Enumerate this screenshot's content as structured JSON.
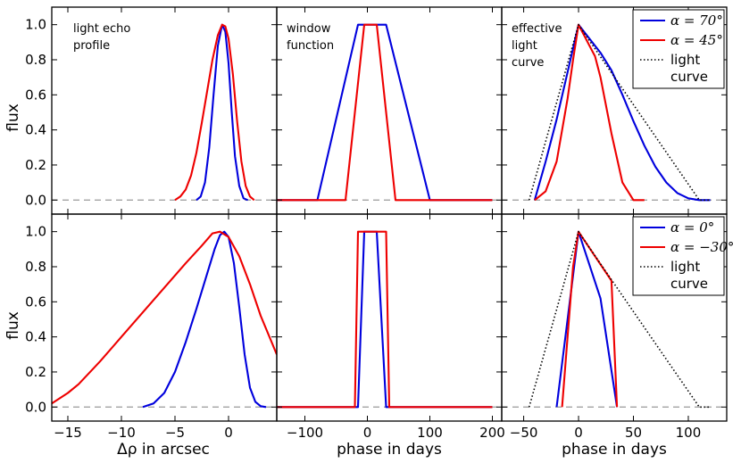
{
  "chart_data": {
    "type": "line",
    "ylabel": "flux",
    "ylim": [
      -0.08,
      1.1
    ],
    "yticks": [
      0.0,
      0.2,
      0.4,
      0.6,
      0.8,
      1.0
    ],
    "ytick_labels": [
      "0.0",
      "0.2",
      "0.4",
      "0.6",
      "0.8",
      "1.0"
    ],
    "columns": [
      {
        "xlabel": "Δρ in arcsec",
        "xlim": [
          -16.5,
          4.5
        ],
        "xticks": [
          -15,
          -10,
          -5,
          0
        ],
        "xtick_labels": [
          "−15",
          "−10",
          "−5",
          "0"
        ]
      },
      {
        "xlabel": "phase in days",
        "xlim": [
          -145,
          215
        ],
        "xticks": [
          -100,
          0,
          100,
          200
        ],
        "xtick_labels": [
          "−100",
          "0",
          "100",
          "200"
        ]
      },
      {
        "xlabel": "phase in days",
        "xlim": [
          -70,
          135
        ],
        "xticks": [
          -50,
          0,
          50,
          100
        ],
        "xtick_labels": [
          "−50",
          "0",
          "50",
          "100"
        ]
      }
    ],
    "panels": [
      {
        "row": 0,
        "col": 0,
        "annotation": [
          "light echo",
          "profile"
        ],
        "series": [
          {
            "name": "α=70°",
            "color": "#0000dd",
            "style": "solid",
            "x": [
              -3.0,
              -2.6,
              -2.2,
              -1.8,
              -1.4,
              -1.0,
              -0.6,
              -0.3,
              0.0,
              0.3,
              0.6,
              1.0,
              1.4,
              1.8
            ],
            "y": [
              0.0,
              0.02,
              0.1,
              0.3,
              0.6,
              0.88,
              1.0,
              0.96,
              0.78,
              0.5,
              0.25,
              0.08,
              0.01,
              0.0
            ]
          },
          {
            "name": "α=45°",
            "color": "#ee0000",
            "style": "solid",
            "x": [
              -5.0,
              -4.5,
              -4.0,
              -3.5,
              -3.0,
              -2.5,
              -2.0,
              -1.5,
              -1.0,
              -0.6,
              -0.3,
              0.0,
              0.4,
              0.8,
              1.2,
              1.6,
              2.0,
              2.4
            ],
            "y": [
              0.0,
              0.02,
              0.06,
              0.14,
              0.27,
              0.44,
              0.62,
              0.8,
              0.94,
              1.0,
              0.99,
              0.92,
              0.72,
              0.45,
              0.22,
              0.08,
              0.02,
              0.0
            ]
          }
        ]
      },
      {
        "row": 0,
        "col": 1,
        "annotation": [
          "window",
          "function"
        ],
        "series": [
          {
            "name": "α=70°",
            "color": "#0000dd",
            "style": "solid",
            "x": [
              -145,
              -80,
              -15,
              30,
              100,
              200
            ],
            "y": [
              0,
              0,
              1,
              1,
              0,
              0
            ]
          },
          {
            "name": "α=45°",
            "color": "#ee0000",
            "style": "solid",
            "x": [
              -145,
              -35,
              -5,
              15,
              45,
              200
            ],
            "y": [
              0,
              0,
              1,
              1,
              0,
              0
            ]
          }
        ]
      },
      {
        "row": 0,
        "col": 2,
        "annotation": [
          "effective",
          "light",
          "curve"
        ],
        "legend": {
          "position": "top-right",
          "entries": [
            "α = 70°",
            "α = 45°",
            "light",
            "curve"
          ]
        },
        "series": [
          {
            "name": "α=70°",
            "color": "#0000dd",
            "style": "solid",
            "x": [
              -40,
              -30,
              -20,
              -10,
              0,
              10,
              20,
              30,
              40,
              50,
              60,
              70,
              80,
              90,
              100,
              110,
              120
            ],
            "y": [
              0.0,
              0.22,
              0.46,
              0.73,
              1.0,
              0.92,
              0.84,
              0.74,
              0.6,
              0.45,
              0.31,
              0.19,
              0.1,
              0.04,
              0.01,
              0.0,
              0.0
            ]
          },
          {
            "name": "α=45°",
            "color": "#ee0000",
            "style": "solid",
            "x": [
              -40,
              -30,
              -20,
              -10,
              -5,
              0,
              5,
              10,
              15,
              20,
              30,
              40,
              50,
              60
            ],
            "y": [
              0.0,
              0.05,
              0.22,
              0.58,
              0.8,
              1.0,
              0.94,
              0.88,
              0.82,
              0.7,
              0.38,
              0.1,
              0.0,
              0.0
            ]
          },
          {
            "name": "light curve",
            "color": "#000000",
            "style": "dotted",
            "x": [
              -45,
              0,
              35,
              110,
              120
            ],
            "y": [
              0.0,
              1.0,
              0.68,
              0.0,
              0.0
            ]
          }
        ]
      },
      {
        "row": 1,
        "col": 0,
        "series": [
          {
            "name": "α=0°",
            "color": "#0000dd",
            "style": "solid",
            "x": [
              -8.0,
              -7.0,
              -6.0,
              -5.0,
              -4.0,
              -3.0,
              -2.0,
              -1.3,
              -0.8,
              -0.4,
              0.0,
              0.5,
              1.0,
              1.5,
              2.0,
              2.5,
              3.0,
              3.5
            ],
            "y": [
              0.0,
              0.02,
              0.08,
              0.2,
              0.37,
              0.56,
              0.76,
              0.9,
              0.98,
              1.0,
              0.97,
              0.82,
              0.57,
              0.3,
              0.11,
              0.03,
              0.005,
              0.0
            ]
          },
          {
            "name": "α=−30°",
            "color": "#ee0000",
            "style": "solid",
            "x": [
              -16.5,
              -15.0,
              -14.0,
              -12.0,
              -10.0,
              -8.0,
              -6.0,
              -4.0,
              -2.5,
              -1.5,
              -0.8,
              0.0,
              1.0,
              2.0,
              3.0,
              4.5
            ],
            "y": [
              0.02,
              0.08,
              0.13,
              0.26,
              0.4,
              0.54,
              0.68,
              0.82,
              0.92,
              0.99,
              1.0,
              0.97,
              0.86,
              0.7,
              0.52,
              0.3
            ]
          }
        ]
      },
      {
        "row": 1,
        "col": 1,
        "series": [
          {
            "name": "α=0°",
            "color": "#0000dd",
            "style": "solid",
            "x": [
              -145,
              -15,
              -5,
              15,
              30,
              200
            ],
            "y": [
              0,
              0,
              1,
              1,
              0,
              0
            ]
          },
          {
            "name": "α=−30°",
            "color": "#ee0000",
            "style": "solid",
            "x": [
              -145,
              -20,
              -15,
              30,
              35,
              200
            ],
            "y": [
              0,
              0,
              1,
              1,
              0,
              0
            ]
          }
        ]
      },
      {
        "row": 1,
        "col": 2,
        "legend": {
          "position": "top-right",
          "entries": [
            "α = 0°",
            "α = −30°",
            "light",
            "curve"
          ]
        },
        "series": [
          {
            "name": "α=0°",
            "color": "#0000dd",
            "style": "solid",
            "x": [
              -20,
              0,
              20,
              35
            ],
            "y": [
              0.0,
              1.0,
              0.62,
              0.0
            ]
          },
          {
            "name": "α=−30°",
            "color": "#ee0000",
            "style": "solid",
            "x": [
              -15,
              -5,
              0,
              30,
              35
            ],
            "y": [
              0.0,
              0.8,
              1.0,
              0.72,
              0.0
            ]
          },
          {
            "name": "light curve",
            "color": "#000000",
            "style": "dotted",
            "x": [
              -45,
              0,
              35,
              110,
              120
            ],
            "y": [
              0.0,
              1.0,
              0.68,
              0.0,
              0.0
            ]
          }
        ]
      }
    ]
  }
}
